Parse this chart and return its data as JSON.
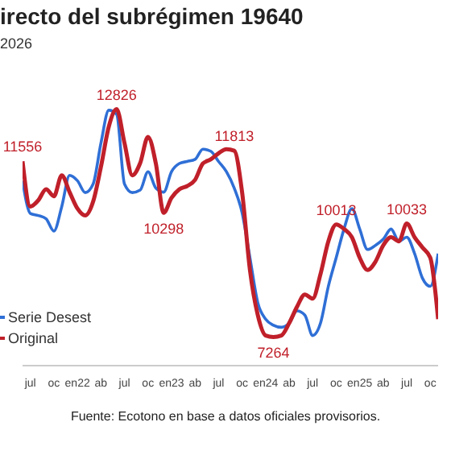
{
  "chart_data": {
    "type": "line",
    "title": "irecto del subrégimen 19640",
    "subtitle": "2026",
    "categories": [
      null,
      "jul",
      null,
      null,
      "oc",
      null,
      null,
      "en22",
      null,
      null,
      "ab",
      null,
      null,
      "jul",
      null,
      null,
      "oc",
      null,
      null,
      "en23",
      null,
      null,
      "ab",
      null,
      null,
      "jul",
      null,
      null,
      "oc",
      null,
      null,
      "en24",
      null,
      null,
      "ab",
      null,
      null,
      "jul",
      null,
      null,
      "oc",
      null,
      null,
      "en25",
      null,
      null,
      "ab",
      null,
      null,
      "jul",
      null,
      null,
      "oc",
      null
    ],
    "series": [
      {
        "name": "Serie Desest",
        "color": "#2f6fd6",
        "values": [
          11080,
          10280,
          10230,
          10150,
          9850,
          10450,
          11210,
          11080,
          10790,
          11000,
          12000,
          12800,
          12700,
          11000,
          10790,
          10850,
          11300,
          10900,
          10800,
          11300,
          11500,
          11550,
          11600,
          11850,
          11800,
          11550,
          11300,
          10900,
          10300,
          9200,
          8100,
          7700,
          7550,
          7500,
          7600,
          7900,
          7800,
          7300,
          7600,
          8500,
          9200,
          9900,
          10400,
          9900,
          9400,
          9500,
          9650,
          9900,
          9600,
          9700,
          9300,
          8700,
          8500,
          9300
        ]
      },
      {
        "name": "Original",
        "color": "#c0202a",
        "values": [
          11556,
          10450,
          10600,
          10870,
          10700,
          11210,
          10800,
          10400,
          10230,
          10570,
          11420,
          12400,
          12826,
          12000,
          11210,
          11510,
          12150,
          11500,
          10298,
          10660,
          10870,
          10950,
          11100,
          11500,
          11600,
          11750,
          11850,
          11813,
          10800,
          8900,
          7800,
          7300,
          7264,
          7300,
          7600,
          8000,
          8300,
          8200,
          8800,
          9600,
          10013,
          9900,
          9700,
          9200,
          8900,
          9100,
          9500,
          9700,
          9600,
          10033,
          9700,
          9450,
          9200,
          7700
        ],
        "value_labels": [
          "11556",
          null,
          null,
          null,
          null,
          null,
          null,
          null,
          null,
          null,
          null,
          null,
          "12826",
          null,
          null,
          null,
          null,
          null,
          "10298",
          null,
          null,
          null,
          null,
          null,
          null,
          null,
          null,
          "11813",
          null,
          null,
          null,
          null,
          "7264",
          null,
          null,
          null,
          null,
          null,
          null,
          null,
          "10013",
          null,
          null,
          null,
          null,
          null,
          null,
          null,
          null,
          "10033",
          null,
          null,
          null,
          null
        ]
      }
    ],
    "tick_labels": "x",
    "legend": "bottom left",
    "marker": "none",
    "line_style": "solid",
    "annotations": [
      "Fuente: Ecotono en base a datos oficiales provisorios."
    ]
  }
}
